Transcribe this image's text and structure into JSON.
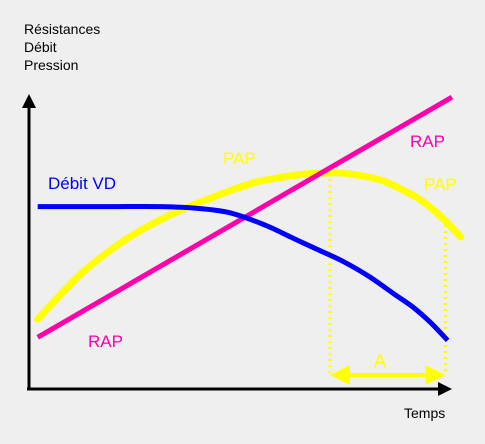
{
  "chart_data": {
    "type": "line",
    "title": "",
    "ylabel_lines": [
      "Résistances",
      "Débit",
      "Pression"
    ],
    "xlabel": "Temps",
    "xlim": [
      0,
      100
    ],
    "ylim": [
      0,
      100
    ],
    "grid": false,
    "series": [
      {
        "name": "RAP",
        "color": "#ff00aa",
        "labels": [
          "RAP",
          "RAP"
        ],
        "x": [
          2,
          97
        ],
        "y": [
          17,
          96
        ]
      },
      {
        "name": "PAP",
        "color": "#ffff00",
        "labels": [
          "PAP",
          "PAP"
        ],
        "x": [
          2,
          12,
          22,
          32,
          42,
          52,
          62,
          67,
          72,
          80,
          85,
          90,
          95,
          99
        ],
        "y": [
          23,
          38,
          49,
          57,
          63,
          68,
          70.5,
          71,
          71,
          69,
          66,
          62,
          56,
          50
        ]
      },
      {
        "name": "Débit VD",
        "color": "#0000ff",
        "labels": [
          "Débit VD"
        ],
        "x": [
          2,
          10,
          20,
          30,
          38,
          46,
          54,
          60,
          66,
          72,
          78,
          84,
          88,
          92,
          96
        ],
        "y": [
          60,
          60,
          60,
          60,
          59.5,
          58,
          54,
          50,
          46,
          42,
          37,
          31,
          27,
          22,
          16
        ]
      }
    ],
    "annotation": {
      "label": "A",
      "color": "#ffff00",
      "from_x": 69,
      "to_x": 95.5
    }
  }
}
